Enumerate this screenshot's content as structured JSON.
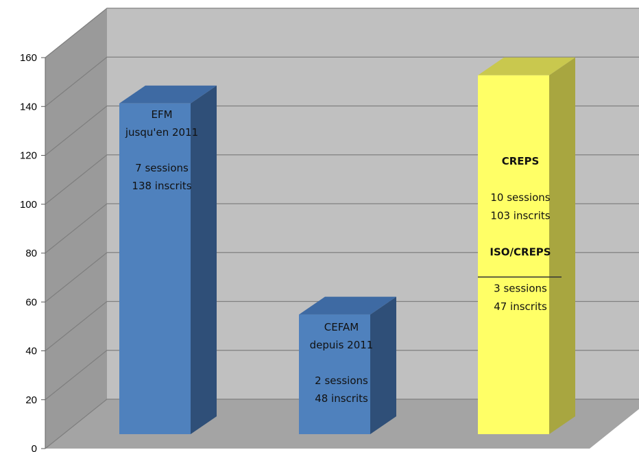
{
  "chart_data": {
    "type": "bar",
    "style": "3d-column",
    "categories": [
      "EFM",
      "CEFAM",
      "CREPS"
    ],
    "ylim": [
      0,
      160
    ],
    "yticks": [
      "0",
      "20",
      "40",
      "60",
      "80",
      "100",
      "120",
      "140",
      "160"
    ],
    "grid": true,
    "bars": [
      {
        "value": 141,
        "color_front": "#4F81BD",
        "color_side": "#2F4F78",
        "color_top": "#3E6AA3",
        "label_lines": [
          {
            "text": "EFM",
            "bold": false
          },
          {
            "text": "jusqu'en 2011",
            "bold": false
          },
          {
            "text": "",
            "bold": false
          },
          {
            "text": "7 sessions",
            "bold": false
          },
          {
            "text": "138 inscrits",
            "bold": false
          }
        ]
      },
      {
        "value": 51,
        "color_front": "#4F81BD",
        "color_side": "#2F4F78",
        "color_top": "#3E6AA3",
        "label_lines": [
          {
            "text": "CEFAM",
            "bold": false
          },
          {
            "text": "depuis 2011",
            "bold": false
          },
          {
            "text": "",
            "bold": false
          },
          {
            "text": "2 sessions",
            "bold": false
          },
          {
            "text": "48 inscrits",
            "bold": false
          }
        ]
      },
      {
        "value": 153,
        "color_front": "#FFFF66",
        "color_side": "#A8A640",
        "color_top": "#C9C84E",
        "label_lines": [
          {
            "text": "CREPS",
            "bold": true
          },
          {
            "text": "",
            "bold": false
          },
          {
            "text": "10 sessions",
            "bold": false
          },
          {
            "text": "103 inscrits",
            "bold": false
          },
          {
            "text": "",
            "bold": false
          },
          {
            "text": "ISO/CREPS",
            "bold": true
          },
          {
            "text": "",
            "bold": false
          },
          {
            "text": "3 sessions",
            "bold": false
          },
          {
            "text": "47 inscrits",
            "bold": false
          }
        ],
        "divider_value": 67
      }
    ]
  }
}
